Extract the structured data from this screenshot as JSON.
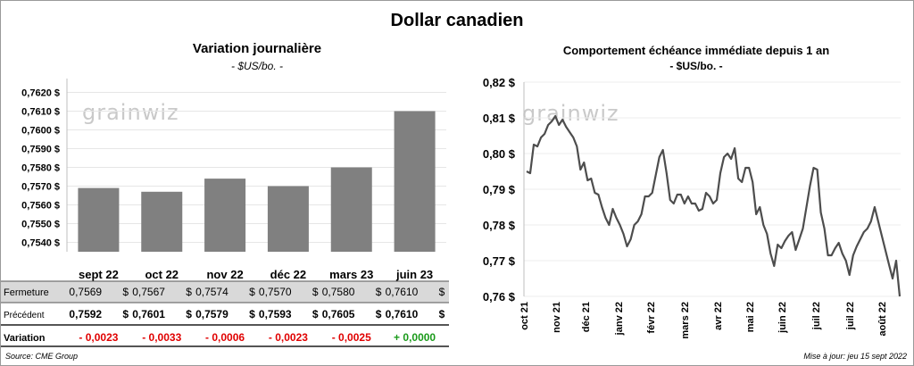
{
  "title": "Dollar canadien",
  "watermark": "grainwiz",
  "left": {
    "title": "Variation  journalière",
    "subtitle": "- $US/bo. -",
    "yticks": [
      "0,7620 $",
      "0,7610 $",
      "0,7600 $",
      "0,7590 $",
      "0,7580 $",
      "0,7570 $",
      "0,7560 $",
      "0,7550 $",
      "0,7540 $"
    ],
    "ylim": [
      0.7535,
      0.7625
    ],
    "bar_color": "#808080",
    "table": {
      "rows": [
        {
          "label": "Fermeture",
          "cells": [
            "0,7569",
            "0,7567",
            "0,7574",
            "0,7570",
            "0,7580",
            "0,7610"
          ]
        },
        {
          "label": "Précédent",
          "cells": [
            "0,7592",
            "0,7601",
            "0,7579",
            "0,7593",
            "0,7605",
            "0,7610"
          ]
        },
        {
          "label": "Variation",
          "cells": [
            "- 0,0023",
            "- 0,0033",
            "- 0,0006",
            "- 0,0023",
            "- 0,0025",
            "+ 0,0000"
          ]
        }
      ],
      "currency": "$",
      "negative_color": "#e00000",
      "positive_color": "#1a9a1a",
      "band_color": "#d9d9d9"
    }
  },
  "right": {
    "title": "Comportement échéance immédiate depuis 1 an",
    "subtitle": "- $US/bo. -",
    "yticks": [
      "0,82 $",
      "0,81 $",
      "0,80 $",
      "0,79 $",
      "0,78 $",
      "0,77 $",
      "0,76 $"
    ],
    "xticks": [
      "oct 21",
      "nov 21",
      "déc 21",
      "janv 22",
      "févr 22",
      "mars 22",
      "avr 22",
      "mai 22",
      "juin 22",
      "juil 22",
      "juil 22",
      "août 22"
    ],
    "line_color": "#4d4d4d"
  },
  "source": "Source: CME Group",
  "updated": "Mise à jour: jeu 15 sept 2022",
  "chart_data": [
    {
      "type": "bar",
      "categories": [
        "sept 22",
        "oct 22",
        "nov 22",
        "déc 22",
        "mars 23",
        "juin 23"
      ],
      "values": [
        0.7569,
        0.7567,
        0.7574,
        0.757,
        0.758,
        0.761
      ],
      "ylim": [
        0.7535,
        0.7625
      ]
    },
    {
      "type": "line",
      "x": [
        "2021-09-15",
        "2021-09-18",
        "2021-09-22",
        "2021-09-25",
        "2021-09-29",
        "2021-10-02",
        "2021-10-06",
        "2021-10-09",
        "2021-10-13",
        "2021-10-16",
        "2021-10-20",
        "2021-10-23",
        "2021-10-27",
        "2021-10-30",
        "2021-11-03",
        "2021-11-06",
        "2021-11-10",
        "2021-11-13",
        "2021-11-17",
        "2021-11-20",
        "2021-11-24",
        "2021-11-27",
        "2021-12-01",
        "2021-12-04",
        "2021-12-08",
        "2021-12-11",
        "2021-12-15",
        "2021-12-18",
        "2021-12-22",
        "2021-12-25",
        "2021-12-29",
        "2022-01-01",
        "2022-01-05",
        "2022-01-08",
        "2022-01-12",
        "2022-01-15",
        "2022-01-19",
        "2022-01-22",
        "2022-01-26",
        "2022-01-29",
        "2022-02-02",
        "2022-02-05",
        "2022-02-09",
        "2022-02-12",
        "2022-02-16",
        "2022-02-19",
        "2022-02-23",
        "2022-02-26",
        "2022-03-02",
        "2022-03-05",
        "2022-03-09",
        "2022-03-12",
        "2022-03-16",
        "2022-03-19",
        "2022-03-23",
        "2022-03-26",
        "2022-03-30",
        "2022-04-02",
        "2022-04-06",
        "2022-04-09",
        "2022-04-13",
        "2022-04-16",
        "2022-04-20",
        "2022-04-23",
        "2022-04-27",
        "2022-04-30",
        "2022-05-04",
        "2022-05-07",
        "2022-05-11",
        "2022-05-14",
        "2022-05-18",
        "2022-05-21",
        "2022-05-25",
        "2022-05-28",
        "2022-06-01",
        "2022-06-04",
        "2022-06-08",
        "2022-06-11",
        "2022-06-15",
        "2022-06-18",
        "2022-06-22",
        "2022-06-25",
        "2022-06-29",
        "2022-07-02",
        "2022-07-06",
        "2022-07-09",
        "2022-07-13",
        "2022-07-16",
        "2022-07-20",
        "2022-07-23",
        "2022-07-27",
        "2022-07-30",
        "2022-08-03",
        "2022-08-06",
        "2022-08-10",
        "2022-08-13",
        "2022-08-17",
        "2022-08-20",
        "2022-08-24",
        "2022-08-27",
        "2022-08-31",
        "2022-09-03",
        "2022-09-07",
        "2022-09-10",
        "2022-09-14"
      ],
      "y": [
        0.795,
        0.7945,
        0.8025,
        0.802,
        0.8045,
        0.8055,
        0.808,
        0.809,
        0.8105,
        0.808,
        0.8095,
        0.8075,
        0.806,
        0.8045,
        0.802,
        0.7955,
        0.7975,
        0.7925,
        0.793,
        0.789,
        0.7885,
        0.785,
        0.782,
        0.78,
        0.7845,
        0.782,
        0.78,
        0.7775,
        0.774,
        0.776,
        0.78,
        0.781,
        0.783,
        0.788,
        0.788,
        0.789,
        0.794,
        0.799,
        0.801,
        0.7945,
        0.787,
        0.786,
        0.7885,
        0.7885,
        0.786,
        0.788,
        0.786,
        0.786,
        0.784,
        0.7845,
        0.789,
        0.788,
        0.786,
        0.787,
        0.7945,
        0.799,
        0.8,
        0.7985,
        0.8015,
        0.793,
        0.792,
        0.796,
        0.796,
        0.792,
        0.783,
        0.785,
        0.78,
        0.7775,
        0.772,
        0.7685,
        0.7745,
        0.7735,
        0.7755,
        0.777,
        0.778,
        0.773,
        0.776,
        0.779,
        0.785,
        0.791,
        0.796,
        0.7955,
        0.7835,
        0.779,
        0.7715,
        0.7715,
        0.7735,
        0.775,
        0.772,
        0.77,
        0.766,
        0.7715,
        0.774,
        0.776,
        0.778,
        0.779,
        0.781,
        0.785,
        0.781,
        0.777,
        0.773,
        0.769,
        0.765,
        0.77,
        0.76
      ],
      "ylim": [
        0.76,
        0.82
      ]
    }
  ]
}
